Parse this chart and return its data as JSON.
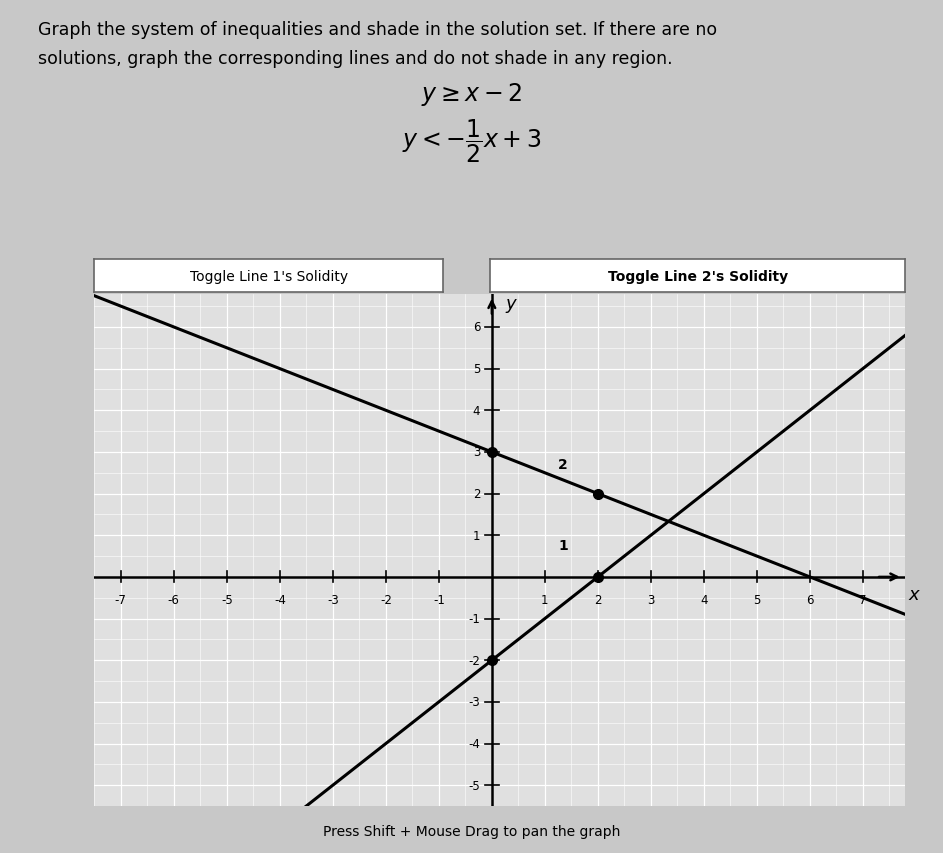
{
  "title_line1": "Graph the system of inequalities and shade in the solution set. If there are no",
  "title_line2": "solutions, graph the corresponding lines and do not shade in any region.",
  "xlim": [
    -7.5,
    7.8
  ],
  "ylim": [
    -5.5,
    6.8
  ],
  "xticks": [
    -7,
    -6,
    -5,
    -4,
    -3,
    -2,
    -1,
    1,
    2,
    3,
    4,
    5,
    6,
    7
  ],
  "yticks": [
    -5,
    -4,
    -3,
    -2,
    -1,
    1,
    2,
    3,
    4,
    5,
    6
  ],
  "line1_color": "#000000",
  "line2_color": "#000000",
  "bg_color": "#dcdcdc",
  "plot_bg_color": "#e0e0e0",
  "grid_color": "#ffffff",
  "button1_text": "Toggle Line 1's Solidity",
  "button2_text": "Toggle Line 2's Solidity",
  "bottom_text": "Press Shift + Mouse Drag to pan the graph",
  "fig_bg": "#c8c8c8",
  "outer_border_color": "#aaaaaa"
}
